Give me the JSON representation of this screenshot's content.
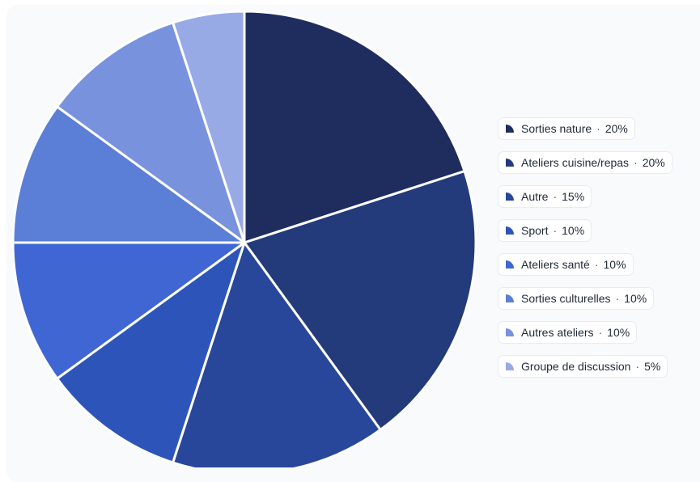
{
  "chart_data": {
    "type": "pie",
    "title": "",
    "slices": [
      {
        "label": "Sorties nature",
        "value": 20,
        "display": "20%",
        "color": "#1f2c5e"
      },
      {
        "label": "Ateliers cuisine/repas",
        "value": 20,
        "display": "20%",
        "color": "#233a7b"
      },
      {
        "label": "Autre",
        "value": 15,
        "display": "15%",
        "color": "#28469a"
      },
      {
        "label": "Sport",
        "value": 10,
        "display": "10%",
        "color": "#2d55b9"
      },
      {
        "label": "Ateliers santé",
        "value": 10,
        "display": "10%",
        "color": "#3f66d2"
      },
      {
        "label": "Sorties culturelles",
        "value": 10,
        "display": "10%",
        "color": "#5b7ed6"
      },
      {
        "label": "Autres ateliers",
        "value": 10,
        "display": "10%",
        "color": "#7892de"
      },
      {
        "label": "Groupe de discussion",
        "value": 5,
        "display": "5%",
        "color": "#98aae6"
      }
    ],
    "legend": {
      "placement": "right",
      "separator": "·"
    }
  }
}
